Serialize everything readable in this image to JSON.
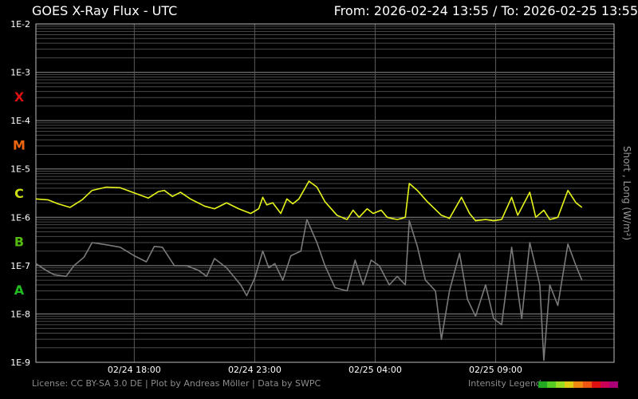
{
  "header": {
    "title": "GOES X-Ray Flux - UTC",
    "range": "From: 2026-02-24 13:55  /  To: 2026-02-25 13:55"
  },
  "footer": {
    "credits": "License: CC BY-SA 3.0 DE | Plot by Andreas Möller | Data by SWPC",
    "legend_label": "Intensity Legend",
    "legend_colors": [
      "#22aa22",
      "#55cc22",
      "#99dd22",
      "#ddcc11",
      "#ee8811",
      "#ee5511",
      "#dd1111",
      "#cc0055",
      "#aa0077"
    ]
  },
  "chart_data": {
    "type": "line",
    "yscale": "log",
    "ylim": [
      1e-09,
      0.01
    ],
    "y_ticks": [
      "1E-9",
      "1E-8",
      "1E-7",
      "1E-6",
      "1E-5",
      "1E-4",
      "1E-3",
      "1E-2"
    ],
    "ylabel": "Short , Long (W/m²)",
    "x_ticks": [
      "02/24 18:00",
      "02/24 23:00",
      "02/25 04:00",
      "02/25 09:00"
    ],
    "xlim": [
      "2026-02-24 13:55",
      "2026-02-25 13:55"
    ],
    "flare_classes": [
      {
        "label": "A",
        "color": "#22bb22"
      },
      {
        "label": "B",
        "color": "#55bb11"
      },
      {
        "label": "C",
        "color": "#ccdd11"
      },
      {
        "label": "M",
        "color": "#ee6611"
      },
      {
        "label": "X",
        "color": "#dd1111"
      }
    ],
    "grid": true,
    "series": [
      {
        "name": "Long",
        "color": "#e6f51a",
        "points": [
          [
            "2026-02-24 13:55",
            2.4e-06
          ],
          [
            "2026-02-24 14:25",
            2.3e-06
          ],
          [
            "2026-02-24 14:50",
            1.9e-06
          ],
          [
            "2026-02-24 15:20",
            1.6e-06
          ],
          [
            "2026-02-24 15:50",
            2.3e-06
          ],
          [
            "2026-02-24 16:15",
            3.6e-06
          ],
          [
            "2026-02-24 16:50",
            4.2e-06
          ],
          [
            "2026-02-24 17:25",
            4.1e-06
          ],
          [
            "2026-02-24 18:00",
            3.2e-06
          ],
          [
            "2026-02-24 18:35",
            2.5e-06
          ],
          [
            "2026-02-24 19:00",
            3.4e-06
          ],
          [
            "2026-02-24 19:15",
            3.6e-06
          ],
          [
            "2026-02-24 19:35",
            2.7e-06
          ],
          [
            "2026-02-24 19:55",
            3.3e-06
          ],
          [
            "2026-02-24 20:20",
            2.4e-06
          ],
          [
            "2026-02-24 20:55",
            1.7e-06
          ],
          [
            "2026-02-24 21:20",
            1.5e-06
          ],
          [
            "2026-02-24 21:50",
            2e-06
          ],
          [
            "2026-02-24 22:20",
            1.5e-06
          ],
          [
            "2026-02-24 22:50",
            1.2e-06
          ],
          [
            "2026-02-24 23:10",
            1.5e-06
          ],
          [
            "2026-02-24 23:20",
            2.6e-06
          ],
          [
            "2026-02-24 23:30",
            1.8e-06
          ],
          [
            "2026-02-24 23:45",
            2e-06
          ],
          [
            "2026-02-25 00:05",
            1.2e-06
          ],
          [
            "2026-02-25 00:20",
            2.4e-06
          ],
          [
            "2026-02-25 00:35",
            1.9e-06
          ],
          [
            "2026-02-25 00:50",
            2.4e-06
          ],
          [
            "2026-02-25 01:15",
            5.6e-06
          ],
          [
            "2026-02-25 01:35",
            4.2e-06
          ],
          [
            "2026-02-25 01:55",
            2.1e-06
          ],
          [
            "2026-02-25 02:25",
            1.1e-06
          ],
          [
            "2026-02-25 02:50",
            9e-07
          ],
          [
            "2026-02-25 03:05",
            1.4e-06
          ],
          [
            "2026-02-25 03:20",
            1e-06
          ],
          [
            "2026-02-25 03:40",
            1.5e-06
          ],
          [
            "2026-02-25 03:55",
            1.2e-06
          ],
          [
            "2026-02-25 04:15",
            1.4e-06
          ],
          [
            "2026-02-25 04:30",
            1e-06
          ],
          [
            "2026-02-25 04:55",
            9e-07
          ],
          [
            "2026-02-25 05:15",
            1e-06
          ],
          [
            "2026-02-25 05:25",
            5e-06
          ],
          [
            "2026-02-25 05:45",
            3.6e-06
          ],
          [
            "2026-02-25 06:10",
            2.1e-06
          ],
          [
            "2026-02-25 06:45",
            1.1e-06
          ],
          [
            "2026-02-25 07:05",
            9.5e-07
          ],
          [
            "2026-02-25 07:35",
            2.6e-06
          ],
          [
            "2026-02-25 07:55",
            1.2e-06
          ],
          [
            "2026-02-25 08:10",
            8.5e-07
          ],
          [
            "2026-02-25 08:35",
            9e-07
          ],
          [
            "2026-02-25 08:55",
            8.5e-07
          ],
          [
            "2026-02-25 09:15",
            9e-07
          ],
          [
            "2026-02-25 09:40",
            2.6e-06
          ],
          [
            "2026-02-25 09:55",
            1.1e-06
          ],
          [
            "2026-02-25 10:25",
            3.3e-06
          ],
          [
            "2026-02-25 10:40",
            1e-06
          ],
          [
            "2026-02-25 11:00",
            1.4e-06
          ],
          [
            "2026-02-25 11:15",
            9e-07
          ],
          [
            "2026-02-25 11:35",
            1e-06
          ],
          [
            "2026-02-25 12:00",
            3.6e-06
          ],
          [
            "2026-02-25 12:20",
            2e-06
          ],
          [
            "2026-02-25 12:35",
            1.6e-06
          ]
        ]
      },
      {
        "name": "Short",
        "color": "#7a7a7a",
        "points": [
          [
            "2026-02-24 13:55",
            1.1e-07
          ],
          [
            "2026-02-24 14:20",
            8e-08
          ],
          [
            "2026-02-24 14:40",
            6.5e-08
          ],
          [
            "2026-02-24 15:10",
            6e-08
          ],
          [
            "2026-02-24 15:30",
            1e-07
          ],
          [
            "2026-02-24 15:55",
            1.5e-07
          ],
          [
            "2026-02-24 16:15",
            3e-07
          ],
          [
            "2026-02-24 16:50",
            2.7e-07
          ],
          [
            "2026-02-24 17:25",
            2.4e-07
          ],
          [
            "2026-02-24 18:00",
            1.6e-07
          ],
          [
            "2026-02-24 18:30",
            1.2e-07
          ],
          [
            "2026-02-24 18:50",
            2.5e-07
          ],
          [
            "2026-02-24 19:10",
            2.4e-07
          ],
          [
            "2026-02-24 19:40",
            1e-07
          ],
          [
            "2026-02-24 20:10",
            1e-07
          ],
          [
            "2026-02-24 20:40",
            8e-08
          ],
          [
            "2026-02-24 21:00",
            6e-08
          ],
          [
            "2026-02-24 21:20",
            1.4e-07
          ],
          [
            "2026-02-24 21:50",
            9e-08
          ],
          [
            "2026-02-24 22:25",
            4e-08
          ],
          [
            "2026-02-24 22:40",
            2.4e-08
          ],
          [
            "2026-02-24 23:00",
            5.5e-08
          ],
          [
            "2026-02-24 23:20",
            2e-07
          ],
          [
            "2026-02-24 23:35",
            9e-08
          ],
          [
            "2026-02-24 23:50",
            1.1e-07
          ],
          [
            "2026-02-25 00:10",
            5e-08
          ],
          [
            "2026-02-25 00:30",
            1.6e-07
          ],
          [
            "2026-02-25 00:55",
            2e-07
          ],
          [
            "2026-02-25 01:10",
            9e-07
          ],
          [
            "2026-02-25 01:35",
            3e-07
          ],
          [
            "2026-02-25 01:55",
            1e-07
          ],
          [
            "2026-02-25 02:20",
            3.5e-08
          ],
          [
            "2026-02-25 02:50",
            3e-08
          ],
          [
            "2026-02-25 03:10",
            1.3e-07
          ],
          [
            "2026-02-25 03:30",
            4e-08
          ],
          [
            "2026-02-25 03:50",
            1.3e-07
          ],
          [
            "2026-02-25 04:10",
            1e-07
          ],
          [
            "2026-02-25 04:35",
            4e-08
          ],
          [
            "2026-02-25 04:55",
            6e-08
          ],
          [
            "2026-02-25 05:15",
            4e-08
          ],
          [
            "2026-02-25 05:25",
            8.5e-07
          ],
          [
            "2026-02-25 05:45",
            2.5e-07
          ],
          [
            "2026-02-25 06:05",
            5e-08
          ],
          [
            "2026-02-25 06:30",
            3e-08
          ],
          [
            "2026-02-25 06:45",
            3e-09
          ],
          [
            "2026-02-25 07:05",
            3e-08
          ],
          [
            "2026-02-25 07:30",
            1.8e-07
          ],
          [
            "2026-02-25 07:50",
            2e-08
          ],
          [
            "2026-02-25 08:10",
            9e-09
          ],
          [
            "2026-02-25 08:35",
            4e-08
          ],
          [
            "2026-02-25 08:55",
            8e-09
          ],
          [
            "2026-02-25 09:15",
            6e-09
          ],
          [
            "2026-02-25 09:40",
            2.4e-07
          ],
          [
            "2026-02-25 10:05",
            8e-09
          ],
          [
            "2026-02-25 10:25",
            3e-07
          ],
          [
            "2026-02-25 10:50",
            4e-08
          ],
          [
            "2026-02-25 11:00",
            1.1e-09
          ],
          [
            "2026-02-25 11:15",
            4e-08
          ],
          [
            "2026-02-25 11:35",
            1.5e-08
          ],
          [
            "2026-02-25 12:00",
            2.8e-07
          ],
          [
            "2026-02-25 12:20",
            1e-07
          ],
          [
            "2026-02-25 12:35",
            5e-08
          ]
        ]
      }
    ]
  }
}
